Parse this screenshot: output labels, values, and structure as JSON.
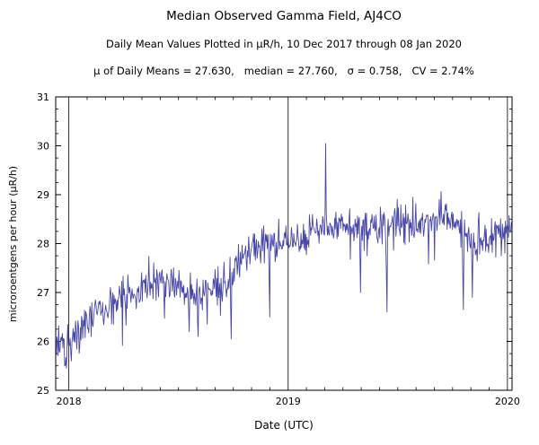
{
  "header": {
    "title": "Median Observed Gamma Field, AJ4CO",
    "subtitle": "Daily Mean Values Plotted in μR/h, 10 Dec 2017 through 08 Jan 2020",
    "stats": "μ of Daily Means = 27.630,   median = 27.760,   σ = 0.758,   CV = 2.74%"
  },
  "chart_data": {
    "type": "line",
    "title": "Median Observed Gamma Field, AJ4CO",
    "subtitle": "Daily Mean Values Plotted in μR/h, 10 Dec 2017 through 08 Jan 2020",
    "xlabel": "Date (UTC)",
    "ylabel": "microroentgens per hour (μR/h)",
    "date_range": "10 Dec 2017 through 08 Jan 2020",
    "stats": {
      "mean_of_daily_means": 27.63,
      "median": 27.76,
      "sigma": 0.758,
      "cv_percent": 2.74
    },
    "xlim": [
      2017.94,
      2020.021
    ],
    "ylim": [
      25,
      31
    ],
    "x_ticks": [
      2018,
      2019,
      2020
    ],
    "y_ticks": [
      25,
      26,
      27,
      28,
      29,
      30,
      31
    ],
    "x_minor_step": 0.08333,
    "y_minor_step": 0.25,
    "grid_x": true,
    "grid_y": false,
    "legend": "none",
    "line_color": "#4747a8",
    "n_points": 760,
    "noise_sd": 0.19,
    "seed": 20,
    "trend": [
      [
        2017.94,
        26.0
      ],
      [
        2018.0,
        25.95
      ],
      [
        2018.03,
        26.1
      ],
      [
        2018.1,
        26.45
      ],
      [
        2018.17,
        26.65
      ],
      [
        2018.25,
        26.9
      ],
      [
        2018.33,
        27.1
      ],
      [
        2018.42,
        27.25
      ],
      [
        2018.5,
        27.1
      ],
      [
        2018.58,
        26.9
      ],
      [
        2018.65,
        27.15
      ],
      [
        2018.72,
        27.2
      ],
      [
        2018.78,
        27.7
      ],
      [
        2018.85,
        27.95
      ],
      [
        2018.95,
        28.0
      ],
      [
        2019.05,
        28.15
      ],
      [
        2019.15,
        28.35
      ],
      [
        2019.25,
        28.3
      ],
      [
        2019.35,
        28.35
      ],
      [
        2019.45,
        28.4
      ],
      [
        2019.55,
        28.45
      ],
      [
        2019.65,
        28.5
      ],
      [
        2019.72,
        28.55
      ],
      [
        2019.8,
        28.2
      ],
      [
        2019.88,
        28.0
      ],
      [
        2019.95,
        28.2
      ],
      [
        2020.021,
        28.35
      ]
    ],
    "dips": [
      [
        2017.99,
        25.45
      ],
      [
        2018.01,
        25.6
      ],
      [
        2018.55,
        26.2
      ],
      [
        2018.59,
        26.1
      ],
      [
        2018.63,
        26.35
      ],
      [
        2018.74,
        26.05
      ],
      [
        2018.915,
        26.5
      ],
      [
        2019.33,
        27.0
      ],
      [
        2019.45,
        26.6
      ],
      [
        2019.8,
        26.65
      ],
      [
        2019.84,
        26.9
      ]
    ],
    "spikes": [
      [
        2019.17,
        30.05
      ]
    ]
  }
}
